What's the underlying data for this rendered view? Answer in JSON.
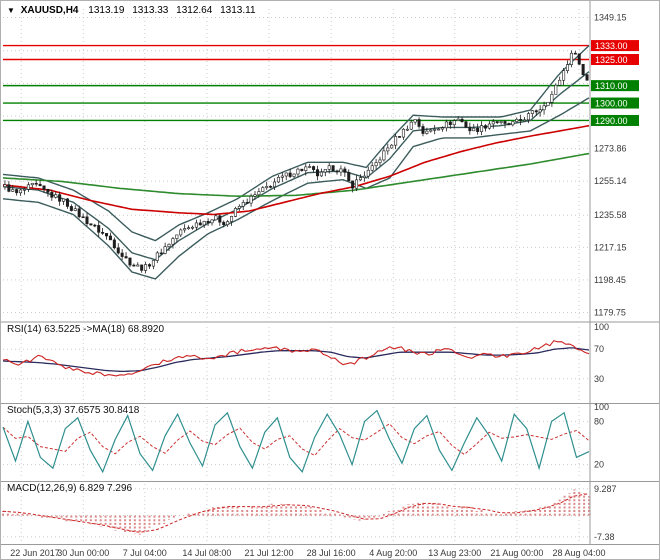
{
  "header": {
    "dropdown_icon": "▼",
    "symbol_period": "XAUUSD,H4",
    "open": "1313.19",
    "high": "1313.33",
    "low": "1312.64",
    "close": "1313.11"
  },
  "chart_data": {
    "type": "candlestick",
    "symbol": "XAUUSD",
    "period": "H4",
    "ohlc": {
      "open": 1313.19,
      "high": 1313.33,
      "low": 1312.64,
      "close": 1313.11
    },
    "x_axis": {
      "labels": [
        "22 Jun 2017",
        "30 Jun 00:00",
        "7 Jul 04:00",
        "14 Jul 08:00",
        "21 Jul 12:00",
        "28 Jul 16:00",
        "4 Aug 20:00",
        "13 Aug 23:00",
        "21 Aug 00:00",
        "28 Aug 04:00"
      ],
      "positions": [
        0.031,
        0.137,
        0.242,
        0.348,
        0.454,
        0.56,
        0.666,
        0.771,
        0.877,
        0.983
      ]
    },
    "main_panel": {
      "y_range": [
        1176,
        1354
      ],
      "y_ticks": [
        {
          "label": "1349.15",
          "value": 1349.15
        },
        {
          "label": "1273.86",
          "value": 1273.86
        },
        {
          "label": "1255.14",
          "value": 1255.14
        },
        {
          "label": "1235.58",
          "value": 1235.58
        },
        {
          "label": "1217.15",
          "value": 1217.15
        },
        {
          "label": "1198.45",
          "value": 1198.45
        },
        {
          "label": "1179.75",
          "value": 1179.75
        }
      ],
      "grid_unlabeled": [
        1292.5,
        1311.2,
        1330.0
      ],
      "levels": [
        {
          "label": "1333.00",
          "value": 1333,
          "role": "resistance",
          "color": "#e60000"
        },
        {
          "label": "1325.00",
          "value": 1325,
          "role": "resistance",
          "color": "#e60000"
        },
        {
          "label": "1310.00",
          "value": 1310,
          "role": "support",
          "color": "#008000"
        },
        {
          "label": "1300.00",
          "value": 1300,
          "role": "support",
          "color": "#008000"
        },
        {
          "label": "1290.00",
          "value": 1290,
          "role": "support",
          "color": "#008000"
        }
      ],
      "close_path": [
        [
          0,
          1252
        ],
        [
          0.02,
          1248
        ],
        [
          0.05,
          1253
        ],
        [
          0.08,
          1247
        ],
        [
          0.1,
          1244
        ],
        [
          0.13,
          1235
        ],
        [
          0.16,
          1227
        ],
        [
          0.18,
          1222
        ],
        [
          0.2,
          1213
        ],
        [
          0.22,
          1207
        ],
        [
          0.24,
          1205
        ],
        [
          0.26,
          1212
        ],
        [
          0.28,
          1219
        ],
        [
          0.3,
          1226
        ],
        [
          0.33,
          1231
        ],
        [
          0.36,
          1234
        ],
        [
          0.38,
          1231
        ],
        [
          0.4,
          1240
        ],
        [
          0.43,
          1247
        ],
        [
          0.46,
          1254
        ],
        [
          0.48,
          1258
        ],
        [
          0.5,
          1261
        ],
        [
          0.52,
          1263
        ],
        [
          0.54,
          1258
        ],
        [
          0.56,
          1263
        ],
        [
          0.58,
          1261
        ],
        [
          0.595,
          1252
        ],
        [
          0.61,
          1257
        ],
        [
          0.63,
          1262
        ],
        [
          0.65,
          1271
        ],
        [
          0.67,
          1279
        ],
        [
          0.69,
          1286
        ],
        [
          0.705,
          1291
        ],
        [
          0.72,
          1282
        ],
        [
          0.74,
          1286
        ],
        [
          0.76,
          1288
        ],
        [
          0.78,
          1291
        ],
        [
          0.8,
          1284
        ],
        [
          0.82,
          1286
        ],
        [
          0.84,
          1290
        ],
        [
          0.86,
          1287
        ],
        [
          0.88,
          1289
        ],
        [
          0.9,
          1293
        ],
        [
          0.92,
          1297
        ],
        [
          0.94,
          1305
        ],
        [
          0.955,
          1315
        ],
        [
          0.97,
          1326
        ],
        [
          0.98,
          1330
        ],
        [
          0.99,
          1318
        ],
        [
          1,
          1313.11
        ]
      ],
      "overlays": {
        "ma_fast": [
          [
            0,
            1253
          ],
          [
            0.08,
            1250
          ],
          [
            0.15,
            1244
          ],
          [
            0.22,
            1239
          ],
          [
            0.3,
            1237
          ],
          [
            0.36,
            1236
          ],
          [
            0.42,
            1238
          ],
          [
            0.48,
            1243
          ],
          [
            0.54,
            1248
          ],
          [
            0.6,
            1252
          ],
          [
            0.66,
            1258
          ],
          [
            0.72,
            1266
          ],
          [
            0.78,
            1272
          ],
          [
            0.84,
            1277
          ],
          [
            0.9,
            1281
          ],
          [
            0.95,
            1284
          ],
          [
            1,
            1287
          ]
        ],
        "ma_slow": [
          [
            0,
            1257
          ],
          [
            0.1,
            1255
          ],
          [
            0.2,
            1251
          ],
          [
            0.3,
            1248
          ],
          [
            0.4,
            1246.5
          ],
          [
            0.5,
            1247
          ],
          [
            0.6,
            1250
          ],
          [
            0.7,
            1255
          ],
          [
            0.8,
            1260
          ],
          [
            0.9,
            1265
          ],
          [
            1,
            1271
          ]
        ],
        "band_upper": [
          [
            0,
            1259
          ],
          [
            0.06,
            1257
          ],
          [
            0.12,
            1250
          ],
          [
            0.18,
            1238
          ],
          [
            0.22,
            1226
          ],
          [
            0.26,
            1221
          ],
          [
            0.3,
            1230
          ],
          [
            0.35,
            1237
          ],
          [
            0.4,
            1245
          ],
          [
            0.46,
            1258
          ],
          [
            0.52,
            1266
          ],
          [
            0.58,
            1266
          ],
          [
            0.62,
            1263
          ],
          [
            0.66,
            1279
          ],
          [
            0.7,
            1293
          ],
          [
            0.75,
            1292
          ],
          [
            0.8,
            1292
          ],
          [
            0.85,
            1292
          ],
          [
            0.9,
            1296
          ],
          [
            0.95,
            1317
          ],
          [
            1,
            1333
          ]
        ],
        "band_mid": [
          [
            0,
            1252
          ],
          [
            0.06,
            1250
          ],
          [
            0.12,
            1243
          ],
          [
            0.18,
            1228
          ],
          [
            0.22,
            1214
          ],
          [
            0.26,
            1210
          ],
          [
            0.3,
            1221
          ],
          [
            0.35,
            1231
          ],
          [
            0.4,
            1239
          ],
          [
            0.46,
            1251
          ],
          [
            0.52,
            1260
          ],
          [
            0.58,
            1261
          ],
          [
            0.62,
            1257
          ],
          [
            0.66,
            1268
          ],
          [
            0.7,
            1284
          ],
          [
            0.75,
            1286
          ],
          [
            0.8,
            1286
          ],
          [
            0.85,
            1287
          ],
          [
            0.9,
            1290
          ],
          [
            0.95,
            1305
          ],
          [
            1,
            1318
          ]
        ],
        "band_lower": [
          [
            0,
            1245
          ],
          [
            0.06,
            1243
          ],
          [
            0.12,
            1236
          ],
          [
            0.18,
            1218
          ],
          [
            0.22,
            1203
          ],
          [
            0.26,
            1199
          ],
          [
            0.3,
            1212
          ],
          [
            0.35,
            1225
          ],
          [
            0.4,
            1233
          ],
          [
            0.46,
            1244
          ],
          [
            0.52,
            1254
          ],
          [
            0.58,
            1256
          ],
          [
            0.62,
            1251
          ],
          [
            0.66,
            1257
          ],
          [
            0.7,
            1275
          ],
          [
            0.75,
            1280
          ],
          [
            0.8,
            1280
          ],
          [
            0.85,
            1282
          ],
          [
            0.9,
            1284
          ],
          [
            0.95,
            1293
          ],
          [
            1,
            1303
          ]
        ]
      }
    },
    "rsi_panel": {
      "label": "RSI(14) 63.5225 ->MA(18) 68.8920",
      "value": 63.5225,
      "ma_value": 68.892,
      "range": [
        0,
        100
      ],
      "ticks": [
        100,
        70,
        30
      ],
      "level_lines": [
        70,
        30
      ],
      "values": [
        55,
        48,
        60,
        52,
        42,
        38,
        35,
        33,
        40,
        52,
        58,
        62,
        55,
        63,
        68,
        70,
        72,
        66,
        70,
        60,
        48,
        58,
        68,
        74,
        62,
        66,
        70,
        58,
        64,
        60,
        66,
        70,
        80,
        76,
        63.5
      ],
      "ma_values": [
        54,
        53,
        52,
        50,
        47,
        44,
        41,
        40,
        41,
        46,
        52,
        56,
        58,
        60,
        63,
        66,
        68,
        68,
        68,
        66,
        60,
        58,
        62,
        66,
        66,
        66,
        66,
        64,
        62,
        62,
        63,
        65,
        70,
        72,
        68.9
      ]
    },
    "stoch_panel": {
      "label": "Stoch(5,3,3) 37.6575 30.8418",
      "value": 37.6575,
      "signal_value": 30.8418,
      "range": [
        0,
        100
      ],
      "ticks": [
        100,
        80,
        20
      ],
      "level_lines": [
        80,
        20
      ],
      "values": [
        72,
        25,
        80,
        30,
        15,
        70,
        85,
        40,
        10,
        55,
        88,
        35,
        12,
        60,
        90,
        50,
        18,
        75,
        92,
        45,
        15,
        65,
        85,
        30,
        10,
        58,
        90,
        62,
        20,
        80,
        95,
        55,
        22,
        70,
        88,
        40,
        12,
        50,
        85,
        60,
        25,
        90,
        70,
        15,
        80,
        92,
        30,
        38
      ]
    },
    "macd_panel": {
      "label": "MACD(12,26,9) 6.829 7.296",
      "value": 6.829,
      "signal_value": 7.296,
      "range": [
        -9.5,
        11
      ],
      "ticks": [
        {
          "label": "9.287",
          "value": 9.287
        },
        {
          "label": "-7.38",
          "value": -7.38
        }
      ],
      "values": [
        1.5,
        0.8,
        0,
        -0.8,
        -1.6,
        -2.4,
        -3.2,
        -4.2,
        -5.5,
        -6.3,
        -4,
        -2,
        0.5,
        1.8,
        3,
        3.5,
        2.8,
        3.2,
        3.6,
        4,
        3.2,
        2.2,
        1,
        -0.8,
        -1.8,
        -0.5,
        2,
        4.2,
        4.6,
        3.6,
        2.6,
        3,
        1.4,
        0.6,
        1.2,
        2,
        3.2,
        5.5,
        8.6,
        7.3
      ]
    },
    "colors": {
      "background": "#ffffff",
      "grid": "#cccccc",
      "axis_text": "#3a3a3a",
      "resistance": "#e60000",
      "support": "#008000",
      "candle_up_fill": "#ffffff",
      "candle_down_fill": "#1c1c1c",
      "candle_outline": "#1c1c1c",
      "ma_fast": "#cc0000",
      "ma_slow": "#2e8b2e",
      "bands": "#3c5c5c",
      "rsi_line": "#cc2222",
      "rsi_ma_line": "#2b2b5e",
      "stoch_main": "#2f8f8f",
      "stoch_signal": "#cc3333",
      "macd_hist": "#dd8a8a",
      "macd_signal": "#cc2222",
      "splitter": "#9a9a9a"
    }
  }
}
